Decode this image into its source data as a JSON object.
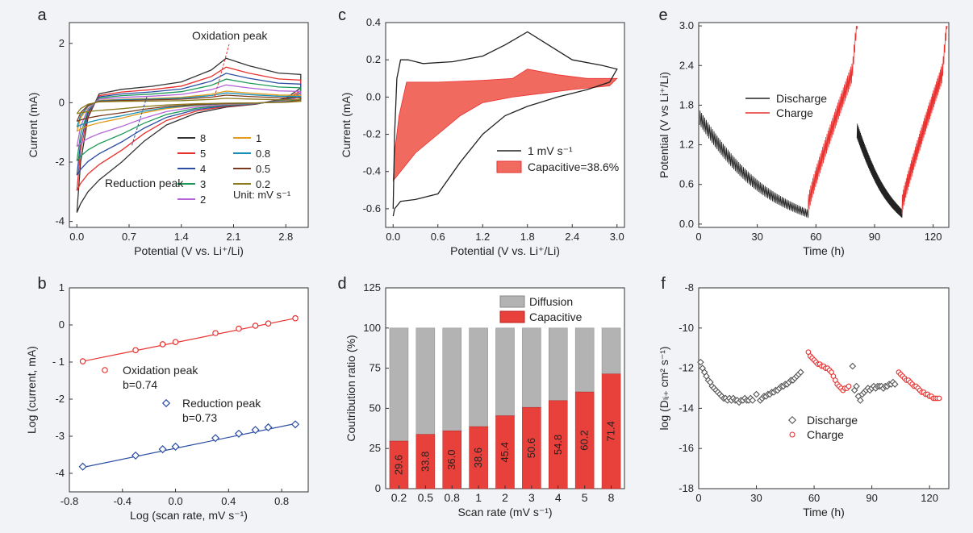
{
  "chart_data": [
    {
      "panel": "a",
      "type": "line",
      "xlabel": "Potential (V vs. Li⁺/Li)",
      "ylabel": "Current (mA)",
      "xlim": [
        -0.1,
        3.1
      ],
      "ylim": [
        -4.2,
        2.7
      ],
      "xticks": [
        0.0,
        0.7,
        1.4,
        2.1,
        2.8
      ],
      "xtick_labels": [
        "0.0",
        "0.7",
        "1.4",
        "2.1",
        "2.8"
      ],
      "yticks": [
        -4,
        -2,
        0,
        2
      ],
      "ytick_labels": [
        "-4",
        "-2",
        "0",
        "2"
      ],
      "legend_unit": "Unit: mV s⁻¹",
      "annotations": {
        "oxidation": "Oxidation peak",
        "reduction": "Reduction peak"
      },
      "series": [
        {
          "name": "8",
          "color": "#333333",
          "scale": 1.0,
          "ipa": 1.5,
          "ipc": -3.7
        },
        {
          "name": "5",
          "color": "#e8312f",
          "scale": 0.8,
          "ipa": 1.15,
          "ipc": -2.6
        },
        {
          "name": "4",
          "color": "#2b4ea2",
          "scale": 0.66,
          "ipa": 0.95,
          "ipc": -2.2
        },
        {
          "name": "3",
          "color": "#1d9a5a",
          "scale": 0.53,
          "ipa": 0.72,
          "ipc": -1.7
        },
        {
          "name": "2",
          "color": "#b565d8",
          "scale": 0.4,
          "ipa": 0.52,
          "ipc": -1.2
        },
        {
          "name": "1",
          "color": "#e39a1a",
          "scale": 0.26,
          "ipa": 0.34,
          "ipc": -0.7
        },
        {
          "name": "0.8",
          "color": "#1a8fb5",
          "scale": 0.22,
          "ipa": 0.27,
          "ipc": -0.55
        },
        {
          "name": "0.5",
          "color": "#7a3a1f",
          "scale": 0.17,
          "ipa": 0.2,
          "ipc": -0.4
        },
        {
          "name": "0.2",
          "color": "#8c7a1c",
          "scale": 0.1,
          "ipa": 0.1,
          "ipc": -0.2
        }
      ]
    },
    {
      "panel": "b",
      "type": "scatter",
      "xlabel": "Log (scan rate, mV s⁻¹)",
      "ylabel": "Log (current, mA)",
      "xlim": [
        -0.8,
        1.0
      ],
      "ylim": [
        -4.5,
        1.0
      ],
      "xticks": [
        -0.8,
        -0.4,
        0.0,
        0.4,
        0.8
      ],
      "xtick_labels": [
        "-0.8",
        "-0.4",
        "0.0",
        "0.4",
        "0.8"
      ],
      "yticks": [
        -4,
        -3,
        -2,
        -1,
        0,
        1
      ],
      "ytick_labels": [
        "-4",
        "-3",
        "-2",
        "- 1",
        "0",
        "1"
      ],
      "series": [
        {
          "name": "Oxidation peak",
          "note": "b=0.74",
          "marker": "circle",
          "color": "#e8312f",
          "x": [
            -0.699,
            -0.301,
            -0.097,
            0.0,
            0.301,
            0.477,
            0.602,
            0.699,
            0.903
          ],
          "y": [
            -0.98,
            -0.68,
            -0.52,
            -0.46,
            -0.22,
            -0.1,
            -0.02,
            0.04,
            0.18
          ],
          "fit": [
            [
              -0.699,
              -0.98
            ],
            [
              0.903,
              0.18
            ]
          ]
        },
        {
          "name": "Reduction peak",
          "note": "b=0.73",
          "marker": "diamond",
          "color": "#2b4ea2",
          "x": [
            -0.699,
            -0.301,
            -0.097,
            0.0,
            0.301,
            0.477,
            0.602,
            0.699,
            0.903
          ],
          "y": [
            -3.82,
            -3.52,
            -3.35,
            -3.28,
            -3.05,
            -2.93,
            -2.83,
            -2.76,
            -2.68
          ],
          "fit": [
            [
              -0.699,
              -3.84
            ],
            [
              0.903,
              -2.66
            ]
          ]
        }
      ]
    },
    {
      "panel": "c",
      "type": "area",
      "xlabel": "Potential (V vs. Li⁺/Li)",
      "ylabel": "Current (mA)",
      "xlim": [
        -0.1,
        3.1
      ],
      "ylim": [
        -0.7,
        0.4
      ],
      "xticks": [
        0.0,
        0.6,
        1.2,
        1.8,
        2.4,
        3.0
      ],
      "xtick_labels": [
        "0.0",
        "0.6",
        "1.2",
        "1.8",
        "2.4",
        "3.0"
      ],
      "yticks": [
        -0.6,
        -0.4,
        -0.2,
        0.0,
        0.2,
        0.4
      ],
      "ytick_labels": [
        "-0.6",
        "-0.4",
        "-0.2",
        "0.0",
        "0.2",
        "0.4"
      ],
      "legend": [
        {
          "name": "1 mV s⁻¹",
          "color": "#222222"
        },
        {
          "name": "Capacitive=38.6%",
          "color": "#f06a60"
        }
      ],
      "cv_upper": [
        [
          0.0,
          -0.6
        ],
        [
          0.02,
          -0.2
        ],
        [
          0.05,
          0.1
        ],
        [
          0.1,
          0.2
        ],
        [
          0.2,
          0.2
        ],
        [
          0.4,
          0.18
        ],
        [
          0.8,
          0.19
        ],
        [
          1.2,
          0.22
        ],
        [
          1.5,
          0.28
        ],
        [
          1.8,
          0.35
        ],
        [
          2.0,
          0.3
        ],
        [
          2.4,
          0.2
        ],
        [
          2.8,
          0.17
        ],
        [
          3.0,
          0.15
        ]
      ],
      "cv_lower": [
        [
          3.0,
          0.15
        ],
        [
          2.9,
          0.08
        ],
        [
          2.6,
          0.04
        ],
        [
          2.2,
          0.0
        ],
        [
          1.8,
          -0.05
        ],
        [
          1.5,
          -0.1
        ],
        [
          1.2,
          -0.2
        ],
        [
          0.9,
          -0.35
        ],
        [
          0.6,
          -0.52
        ],
        [
          0.3,
          -0.55
        ],
        [
          0.1,
          -0.56
        ],
        [
          0.02,
          -0.6
        ],
        [
          0.0,
          -0.64
        ]
      ],
      "cap_upper": [
        [
          0.18,
          0.08
        ],
        [
          0.6,
          0.08
        ],
        [
          1.2,
          0.09
        ],
        [
          1.6,
          0.1
        ],
        [
          1.8,
          0.15
        ],
        [
          2.2,
          0.12
        ],
        [
          2.6,
          0.1
        ],
        [
          3.0,
          0.1
        ]
      ],
      "cap_lower": [
        [
          3.0,
          0.1
        ],
        [
          2.9,
          0.06
        ],
        [
          2.4,
          0.04
        ],
        [
          2.0,
          0.02
        ],
        [
          1.6,
          0.0
        ],
        [
          1.2,
          -0.03
        ],
        [
          0.9,
          -0.1
        ],
        [
          0.6,
          -0.2
        ],
        [
          0.3,
          -0.3
        ],
        [
          0.1,
          -0.4
        ],
        [
          0.0,
          -0.45
        ],
        [
          0.02,
          -0.3
        ],
        [
          0.08,
          -0.1
        ],
        [
          0.18,
          0.08
        ]
      ]
    },
    {
      "panel": "d",
      "type": "bar",
      "xlabel": "Scan rate (mV s⁻¹)",
      "ylabel": "Coutribution ratio (%)",
      "ylim": [
        0,
        125
      ],
      "yticks": [
        0,
        25,
        50,
        75,
        100,
        125
      ],
      "ytick_labels": [
        "0",
        "25",
        "50",
        "75",
        "100",
        "125"
      ],
      "categories": [
        "0.2",
        "0.5",
        "0.8",
        "1",
        "2",
        "3",
        "4",
        "5",
        "8"
      ],
      "series": [
        {
          "name": "Capacitive",
          "color": "#e8403a",
          "values": [
            29.6,
            33.8,
            36.0,
            38.6,
            45.4,
            50.6,
            54.8,
            60.2,
            71.4
          ]
        },
        {
          "name": "Diffusion",
          "color": "#b3b3b3",
          "values": [
            70.4,
            66.2,
            64.0,
            61.4,
            54.6,
            49.4,
            45.2,
            39.8,
            28.6
          ]
        }
      ],
      "value_labels": [
        "29.6",
        "33.8",
        "36.0",
        "38.6",
        "45.4",
        "50.6",
        "54.8",
        "60.2",
        "71.4"
      ]
    },
    {
      "panel": "e",
      "type": "line",
      "xlabel": "Time (h)",
      "ylabel": "Potential (V vs Li⁺/Li)",
      "xlim": [
        0,
        128
      ],
      "ylim": [
        -0.05,
        3.05
      ],
      "xticks": [
        0,
        30,
        60,
        90,
        120
      ],
      "xtick_labels": [
        "0",
        "30",
        "60",
        "90",
        "120"
      ],
      "yticks": [
        0.0,
        0.6,
        1.2,
        1.8,
        2.4,
        3.0
      ],
      "ytick_labels": [
        "0.0",
        "0.6",
        "1.2",
        "1.8",
        "2.4",
        "3.0"
      ],
      "legend": [
        {
          "name": "Discharge",
          "color": "#222222"
        },
        {
          "name": "Charge",
          "color": "#e8312f"
        }
      ]
    },
    {
      "panel": "f",
      "type": "scatter",
      "xlabel": "Time (h)",
      "ylabel": "log (Dₗᵢ₊ cm² s⁻¹)",
      "xlim": [
        0,
        130
      ],
      "ylim": [
        -18,
        -8
      ],
      "xticks": [
        0,
        30,
        60,
        90,
        120
      ],
      "xtick_labels": [
        "0",
        "30",
        "60",
        "90",
        "120"
      ],
      "yticks": [
        -18,
        -16,
        -14,
        -12,
        -10,
        -8
      ],
      "ytick_labels": [
        "-18",
        "-16",
        "-14",
        "-12",
        "-10",
        "-8"
      ],
      "legend": [
        {
          "name": "Discharge",
          "color": "#555555"
        },
        {
          "name": "Charge",
          "color": "#e8312f"
        }
      ],
      "series": [
        {
          "name": "Discharge",
          "marker": "diamond",
          "color": "#555555",
          "x": [
            1,
            2,
            3,
            4,
            5,
            6,
            7,
            8,
            9,
            10,
            11,
            12,
            13,
            14,
            15,
            16,
            17,
            18,
            19,
            20,
            21,
            22,
            23,
            24,
            25,
            26,
            27,
            28,
            30,
            32,
            33,
            34,
            35,
            36,
            37,
            38,
            39,
            40,
            41,
            42,
            43,
            44,
            45,
            46,
            47,
            48,
            49,
            50,
            51,
            52,
            53,
            80,
            81,
            82,
            83,
            84,
            85,
            86,
            87,
            88,
            89,
            90,
            91,
            92,
            93,
            94,
            95,
            96,
            97,
            98,
            99,
            100,
            101,
            102
          ],
          "y": [
            -11.7,
            -12.0,
            -12.2,
            -12.4,
            -12.6,
            -12.7,
            -12.9,
            -13.0,
            -13.1,
            -13.2,
            -13.3,
            -13.4,
            -13.5,
            -13.5,
            -13.6,
            -13.5,
            -13.6,
            -13.5,
            -13.6,
            -13.6,
            -13.7,
            -13.6,
            -13.6,
            -13.5,
            -13.6,
            -13.6,
            -13.5,
            -13.6,
            -13.3,
            -13.6,
            -13.5,
            -13.4,
            -13.4,
            -13.3,
            -13.3,
            -13.2,
            -13.2,
            -13.1,
            -13.1,
            -13.0,
            -12.9,
            -12.9,
            -12.8,
            -12.8,
            -12.7,
            -12.6,
            -12.6,
            -12.5,
            -12.4,
            -12.3,
            -12.2,
            -11.9,
            -13.1,
            -12.9,
            -13.4,
            -13.6,
            -13.3,
            -13.2,
            -13.1,
            -13.0,
            -13.1,
            -13.0,
            -12.9,
            -13.0,
            -12.9,
            -12.9,
            -12.9,
            -13.0,
            -12.9,
            -12.9,
            -12.8,
            -12.8,
            -12.7,
            -12.8
          ]
        },
        {
          "name": "Charge",
          "marker": "circle",
          "color": "#e8312f",
          "x": [
            57,
            58,
            59,
            60,
            61,
            62,
            63,
            64,
            65,
            66,
            67,
            68,
            69,
            70,
            71,
            72,
            73,
            74,
            75,
            76,
            77,
            78,
            104,
            105,
            106,
            107,
            108,
            109,
            110,
            111,
            112,
            113,
            114,
            115,
            116,
            117,
            118,
            119,
            120,
            121,
            122,
            123,
            124,
            125
          ],
          "y": [
            -11.2,
            -11.4,
            -11.5,
            -11.6,
            -11.7,
            -11.8,
            -11.8,
            -11.9,
            -11.9,
            -12.0,
            -12.0,
            -12.1,
            -12.2,
            -12.4,
            -12.6,
            -12.8,
            -12.9,
            -13.0,
            -13.1,
            -13.0,
            -13.0,
            -12.9,
            -12.2,
            -12.3,
            -12.4,
            -12.5,
            -12.6,
            -12.6,
            -12.7,
            -12.8,
            -12.9,
            -12.9,
            -13.0,
            -13.1,
            -13.2,
            -13.2,
            -13.3,
            -13.3,
            -13.4,
            -13.4,
            -13.5,
            -13.5,
            -13.5,
            -13.5
          ]
        }
      ]
    }
  ]
}
